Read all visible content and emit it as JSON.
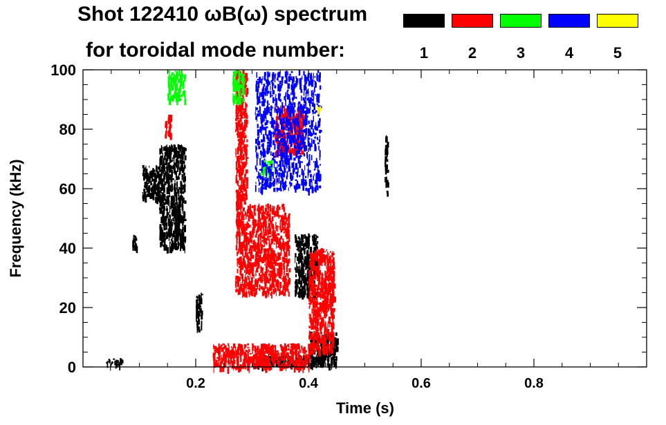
{
  "chart_data": {
    "type": "heatmap",
    "title_line1": "Shot 122410 ωB(ω) spectrum",
    "title_line2": "for toroidal mode number:",
    "xlabel": "Time (s)",
    "ylabel": "Frequency (kHz)",
    "xlim": [
      0.0,
      1.0
    ],
    "ylim": [
      0,
      100
    ],
    "x_ticks": [
      0.2,
      0.4,
      0.6,
      0.8
    ],
    "x_tick_labels": [
      "0.2",
      "0.4",
      "0.6",
      "0.8"
    ],
    "y_ticks": [
      0,
      20,
      40,
      60,
      80,
      100
    ],
    "y_tick_labels": [
      "0",
      "20",
      "40",
      "60",
      "80",
      "100"
    ],
    "legend": [
      {
        "label": "1",
        "color": "#000000"
      },
      {
        "label": "2",
        "color": "#ff0000"
      },
      {
        "label": "3",
        "color": "#00ff00"
      },
      {
        "label": "4",
        "color": "#0000ff"
      },
      {
        "label": "5",
        "color": "#ffff00"
      }
    ],
    "regions": [
      {
        "mode": "1",
        "t": [
          0.105,
          0.135
        ],
        "f": [
          57,
          68
        ],
        "note": "~60-65 kHz burst"
      },
      {
        "mode": "1",
        "t": [
          0.135,
          0.18
        ],
        "f": [
          40,
          75
        ]
      },
      {
        "mode": "1",
        "t": [
          0.085,
          0.095
        ],
        "f": [
          40,
          45
        ]
      },
      {
        "mode": "1",
        "t": [
          0.2,
          0.21
        ],
        "f": [
          12,
          25
        ]
      },
      {
        "mode": "1",
        "t": [
          0.375,
          0.415
        ],
        "f": [
          25,
          45
        ],
        "note": "~30-40 kHz"
      },
      {
        "mode": "1",
        "t": [
          0.4,
          0.45
        ],
        "f": [
          1,
          12
        ]
      },
      {
        "mode": "1",
        "t": [
          0.3,
          0.43
        ],
        "f": [
          1,
          4
        ]
      },
      {
        "mode": "1",
        "t": [
          0.535,
          0.54
        ],
        "f": [
          58,
          78
        ]
      },
      {
        "mode": "1",
        "t": [
          0.04,
          0.07
        ],
        "f": [
          1,
          3
        ]
      },
      {
        "mode": "2",
        "t": [
          0.27,
          0.365
        ],
        "f": [
          25,
          55
        ],
        "note": "dominant red ~35-45 kHz"
      },
      {
        "mode": "2",
        "t": [
          0.27,
          0.29
        ],
        "f": [
          55,
          100
        ]
      },
      {
        "mode": "2",
        "t": [
          0.34,
          0.39
        ],
        "f": [
          72,
          88
        ]
      },
      {
        "mode": "2",
        "t": [
          0.4,
          0.445
        ],
        "f": [
          5,
          40
        ]
      },
      {
        "mode": "2",
        "t": [
          0.145,
          0.155
        ],
        "f": [
          78,
          85
        ]
      },
      {
        "mode": "2",
        "t": [
          0.23,
          0.4
        ],
        "f": [
          0,
          8
        ]
      },
      {
        "mode": "3",
        "t": [
          0.15,
          0.18
        ],
        "f": [
          90,
          100
        ]
      },
      {
        "mode": "3",
        "t": [
          0.315,
          0.335
        ],
        "f": [
          65,
          70
        ]
      },
      {
        "mode": "3",
        "t": [
          0.265,
          0.285
        ],
        "f": [
          90,
          100
        ]
      },
      {
        "mode": "4",
        "t": [
          0.305,
          0.42
        ],
        "f": [
          60,
          100
        ],
        "note": "chirping blue trace"
      },
      {
        "mode": "5",
        "t": [
          0.415,
          0.42
        ],
        "f": [
          87,
          88
        ]
      }
    ]
  }
}
